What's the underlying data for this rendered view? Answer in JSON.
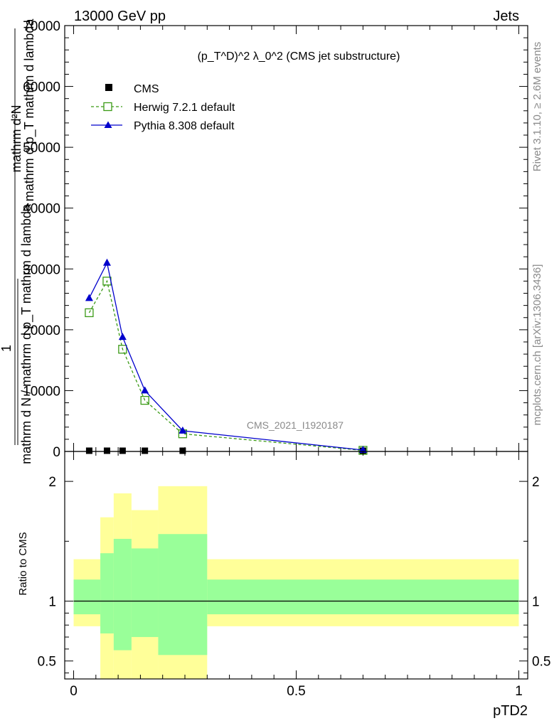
{
  "header": {
    "left": "13000 GeV pp",
    "right": "Jets"
  },
  "side_labels": {
    "rivet": "Rivet 3.1.10, ≥ 2.6M events",
    "mcplots": "mcplots.cern.ch [arXiv:1306.3436]"
  },
  "chart_data": [
    {
      "type": "line",
      "title": "(p_T^D)^2 λ_0^2 (CMS jet substructure)",
      "watermark": "CMS_2021_I1920187",
      "ylabel": {
        "top": "mathrm d²N",
        "frac_num": "1",
        "frac_den": "mathrm d N / mathrm d p_T mathrm d lambda",
        "overlap": "mathrm d p_T mathrm d lambda"
      },
      "x": [
        0.035,
        0.075,
        0.11,
        0.16,
        0.245,
        0.65
      ],
      "xlim": [
        -0.02,
        1.02
      ],
      "ylim": [
        0,
        70000
      ],
      "yticks": [
        "0",
        "10000",
        "20000",
        "30000",
        "40000",
        "50000",
        "60000",
        "70000"
      ],
      "yticks_values": [
        0,
        10000,
        20000,
        30000,
        40000,
        50000,
        60000,
        70000
      ],
      "series": [
        {
          "name": "CMS",
          "color": "#000000",
          "marker": "square-filled",
          "values": [
            120,
            120,
            100,
            80,
            60,
            15
          ]
        },
        {
          "name": "Herwig 7.2.1 default",
          "color": "#3a9a15",
          "marker": "square-open",
          "line": "dashed",
          "values": [
            22800,
            28000,
            16800,
            8400,
            2900,
            180
          ]
        },
        {
          "name": "Pythia 8.308 default",
          "color": "#0000cc",
          "marker": "triangle-filled",
          "line": "solid",
          "values": [
            25200,
            31000,
            18800,
            10000,
            3400,
            230
          ]
        }
      ]
    },
    {
      "type": "area",
      "ylabel": "Ratio to CMS",
      "xlabel": "pTD2",
      "xlim": [
        -0.02,
        1.02
      ],
      "ylim": [
        0.35,
        2.25
      ],
      "xticks": [
        "0",
        "0.5",
        "1"
      ],
      "xticks_values": [
        0,
        0.5,
        1
      ],
      "yticks": [
        "0.5",
        "1",
        "2"
      ],
      "yticks_values": [
        0.5,
        1,
        2
      ],
      "bins": [
        0.0,
        0.06,
        0.09,
        0.13,
        0.19,
        0.3,
        1.0
      ],
      "band_outer": {
        "color": "#ffff99",
        "lo": [
          0.79,
          0.35,
          0.35,
          0.35,
          0.35,
          0.79
        ],
        "hi": [
          1.35,
          1.7,
          1.9,
          1.76,
          1.96,
          1.35
        ]
      },
      "band_inner": {
        "color": "#99ff99",
        "lo": [
          0.89,
          0.73,
          0.59,
          0.7,
          0.55,
          0.89
        ],
        "hi": [
          1.18,
          1.4,
          1.52,
          1.44,
          1.56,
          1.18
        ]
      },
      "reference_line": 1
    }
  ]
}
